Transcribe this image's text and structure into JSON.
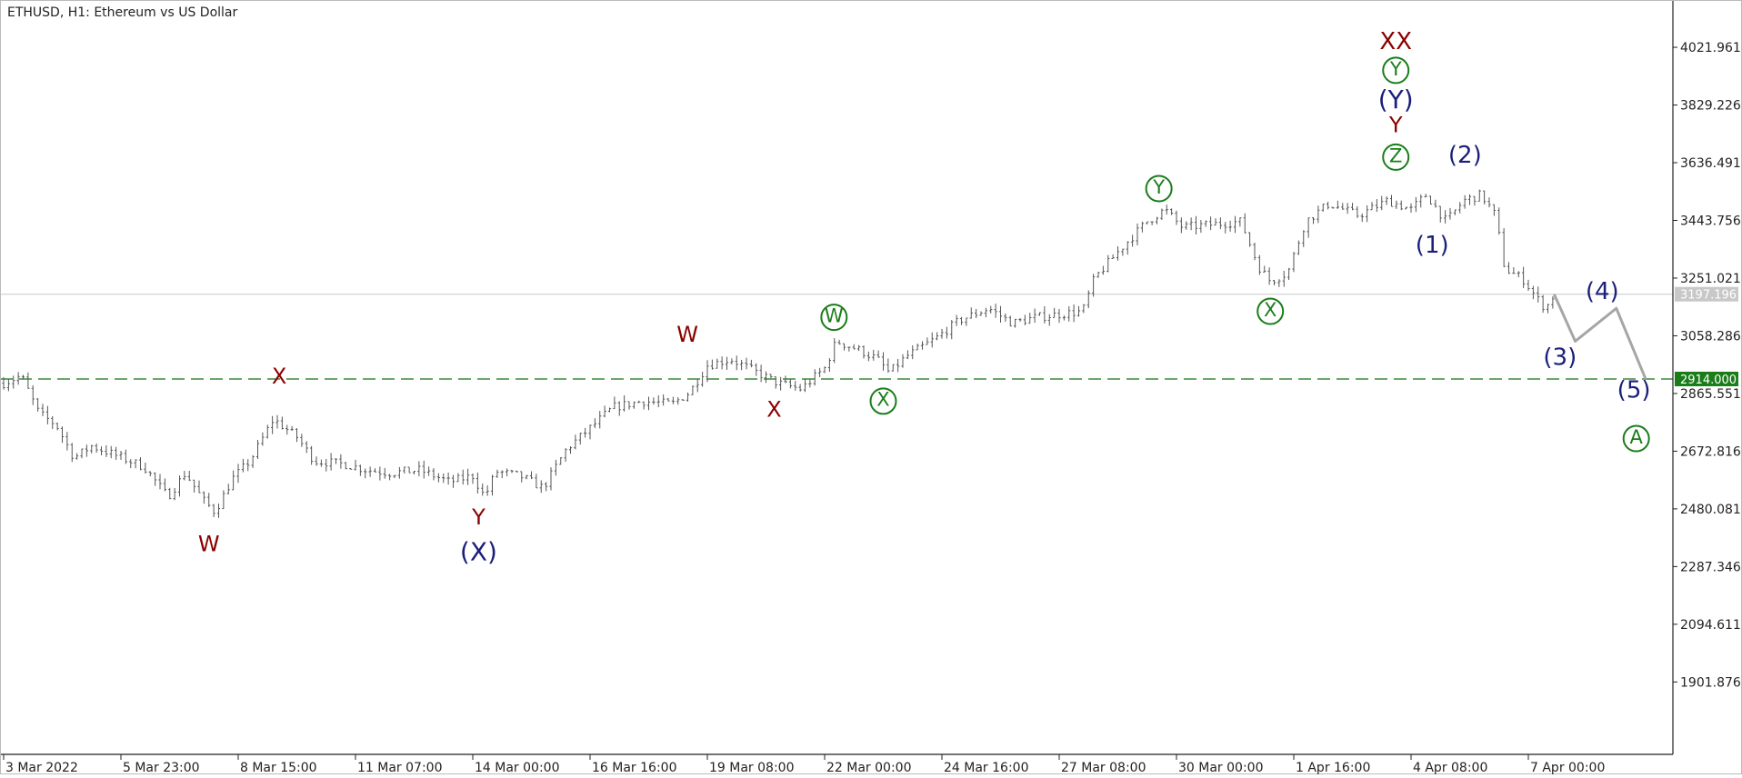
{
  "header": {
    "title": "ETHUSD, H1:  Ethereum vs US Dollar"
  },
  "colors": {
    "background": "#ffffff",
    "candles": "#555555",
    "projection": "#a6a6a6",
    "support_line": "#3a8a3a",
    "current_price_line": "#c8c8c8",
    "label_red": "#8b0000",
    "label_navy": "#1b1f7a",
    "label_green": "#1a7d1a",
    "support_badge_bg": "#1a7d1a",
    "current_badge_bg": "#c8c8c8"
  },
  "chart_data": {
    "type": "line",
    "symbol": "ETHUSD",
    "timeframe": "H1",
    "ylim": [
      1660,
      4180
    ],
    "y_ticks": [
      "4021.961",
      "3829.226",
      "3636.491",
      "3443.756",
      "3251.021",
      "3058.286",
      "2865.551",
      "2672.816",
      "2480.081",
      "2287.346",
      "2094.611",
      "1901.876"
    ],
    "x_ticks": [
      "3 Mar 2022",
      "5 Mar 23:00",
      "8 Mar 15:00",
      "11 Mar 07:00",
      "14 Mar 00:00",
      "16 Mar 16:00",
      "19 Mar 08:00",
      "22 Mar 00:00",
      "24 Mar 16:00",
      "27 Mar 08:00",
      "30 Mar 00:00",
      "1 Apr 16:00",
      "4 Apr 08:00",
      "7 Apr 00:00"
    ],
    "x_range": [
      0,
      14.45
    ],
    "current_price": "3197.196",
    "support_level": "2914.000",
    "price_path": [
      [
        0.0,
        2900
      ],
      [
        0.15,
        2925
      ],
      [
        0.3,
        2800
      ],
      [
        0.45,
        2760
      ],
      [
        0.6,
        2650
      ],
      [
        0.75,
        2690
      ],
      [
        0.95,
        2660
      ],
      [
        1.2,
        2620
      ],
      [
        1.4,
        2520
      ],
      [
        1.55,
        2600
      ],
      [
        1.7,
        2510
      ],
      [
        1.8,
        2470
      ],
      [
        1.95,
        2580
      ],
      [
        2.1,
        2640
      ],
      [
        2.3,
        2780
      ],
      [
        2.5,
        2720
      ],
      [
        2.65,
        2640
      ],
      [
        2.9,
        2630
      ],
      [
        3.1,
        2610
      ],
      [
        3.3,
        2600
      ],
      [
        3.55,
        2610
      ],
      [
        3.8,
        2570
      ],
      [
        4.0,
        2590
      ],
      [
        4.1,
        2520
      ],
      [
        4.2,
        2605
      ],
      [
        4.4,
        2590
      ],
      [
        4.6,
        2550
      ],
      [
        4.8,
        2680
      ],
      [
        5.0,
        2750
      ],
      [
        5.2,
        2820
      ],
      [
        5.45,
        2840
      ],
      [
        5.7,
        2830
      ],
      [
        5.85,
        2870
      ],
      [
        6.0,
        2960
      ],
      [
        6.2,
        2980
      ],
      [
        6.4,
        2940
      ],
      [
        6.6,
        2900
      ],
      [
        6.8,
        2880
      ],
      [
        7.0,
        2950
      ],
      [
        7.1,
        3040
      ],
      [
        7.3,
        3010
      ],
      [
        7.45,
        2980
      ],
      [
        7.55,
        2935
      ],
      [
        7.7,
        2990
      ],
      [
        7.95,
        3050
      ],
      [
        8.15,
        3110
      ],
      [
        8.4,
        3150
      ],
      [
        8.6,
        3100
      ],
      [
        8.8,
        3120
      ],
      [
        9.0,
        3130
      ],
      [
        9.2,
        3140
      ],
      [
        9.3,
        3250
      ],
      [
        9.55,
        3360
      ],
      [
        9.75,
        3440
      ],
      [
        9.9,
        3480
      ],
      [
        10.05,
        3420
      ],
      [
        10.3,
        3430
      ],
      [
        10.55,
        3440
      ],
      [
        10.7,
        3290
      ],
      [
        10.8,
        3240
      ],
      [
        10.95,
        3270
      ],
      [
        11.1,
        3440
      ],
      [
        11.3,
        3500
      ],
      [
        11.55,
        3460
      ],
      [
        11.8,
        3510
      ],
      [
        12.0,
        3480
      ],
      [
        12.13,
        3530
      ],
      [
        12.3,
        3440
      ],
      [
        12.45,
        3510
      ],
      [
        12.6,
        3530
      ],
      [
        12.72,
        3460
      ],
      [
        12.8,
        3280
      ],
      [
        12.95,
        3250
      ],
      [
        13.1,
        3170
      ],
      [
        13.15,
        3150
      ],
      [
        13.22,
        3197
      ]
    ],
    "projection": [
      [
        13.22,
        3197
      ],
      [
        13.4,
        3040
      ],
      [
        13.75,
        3150
      ],
      [
        14.0,
        2914
      ]
    ],
    "annotations": [
      {
        "text": "X",
        "x": 2.35,
        "y": 2920,
        "color": "red",
        "circle": false,
        "size": 20
      },
      {
        "text": "W",
        "x": 1.75,
        "y": 2360,
        "color": "red",
        "circle": false,
        "size": 20
      },
      {
        "text": "Y",
        "x": 4.05,
        "y": 2450,
        "color": "red",
        "circle": false,
        "size": 20
      },
      {
        "text": "(X)",
        "x": 4.05,
        "y": 2335,
        "color": "navy",
        "circle": false,
        "size": 24
      },
      {
        "text": "W",
        "x": 5.83,
        "y": 3060,
        "color": "red",
        "circle": false,
        "size": 20
      },
      {
        "text": "X",
        "x": 6.57,
        "y": 2810,
        "color": "red",
        "circle": false,
        "size": 20
      },
      {
        "text": "W",
        "x": 7.08,
        "y": 3120,
        "color": "green",
        "circle": true,
        "size": 15
      },
      {
        "text": "X",
        "x": 7.5,
        "y": 2840,
        "color": "green",
        "circle": true,
        "size": 15
      },
      {
        "text": "Y",
        "x": 9.85,
        "y": 3550,
        "color": "green",
        "circle": true,
        "size": 15
      },
      {
        "text": "X",
        "x": 10.8,
        "y": 3140,
        "color": "green",
        "circle": true,
        "size": 15
      },
      {
        "text": "(1)",
        "x": 12.18,
        "y": 3360,
        "color": "navy",
        "circle": false,
        "size": 22
      },
      {
        "text": "(2)",
        "x": 12.46,
        "y": 3660,
        "color": "navy",
        "circle": false,
        "size": 22
      },
      {
        "text": "Z",
        "x": 11.87,
        "y": 3655,
        "color": "green",
        "circle": true,
        "size": 15
      },
      {
        "text": "Y",
        "x": 11.87,
        "y": 3760,
        "color": "red",
        "circle": false,
        "size": 20
      },
      {
        "text": "(Y)",
        "x": 11.87,
        "y": 3845,
        "color": "navy",
        "circle": false,
        "size": 24
      },
      {
        "text": "Y",
        "x": 11.87,
        "y": 3945,
        "color": "green",
        "circle": true,
        "size": 15
      },
      {
        "text": "XX",
        "x": 11.87,
        "y": 4040,
        "color": "red",
        "circle": false,
        "size": 22
      },
      {
        "text": "(3)",
        "x": 13.27,
        "y": 2985,
        "color": "navy",
        "circle": false,
        "size": 22
      },
      {
        "text": "(4)",
        "x": 13.63,
        "y": 3205,
        "color": "navy",
        "circle": false,
        "size": 22
      },
      {
        "text": "(5)",
        "x": 13.9,
        "y": 2875,
        "color": "navy",
        "circle": false,
        "size": 22
      },
      {
        "text": "A",
        "x": 13.92,
        "y": 2715,
        "color": "green",
        "circle": true,
        "size": 15
      }
    ]
  }
}
